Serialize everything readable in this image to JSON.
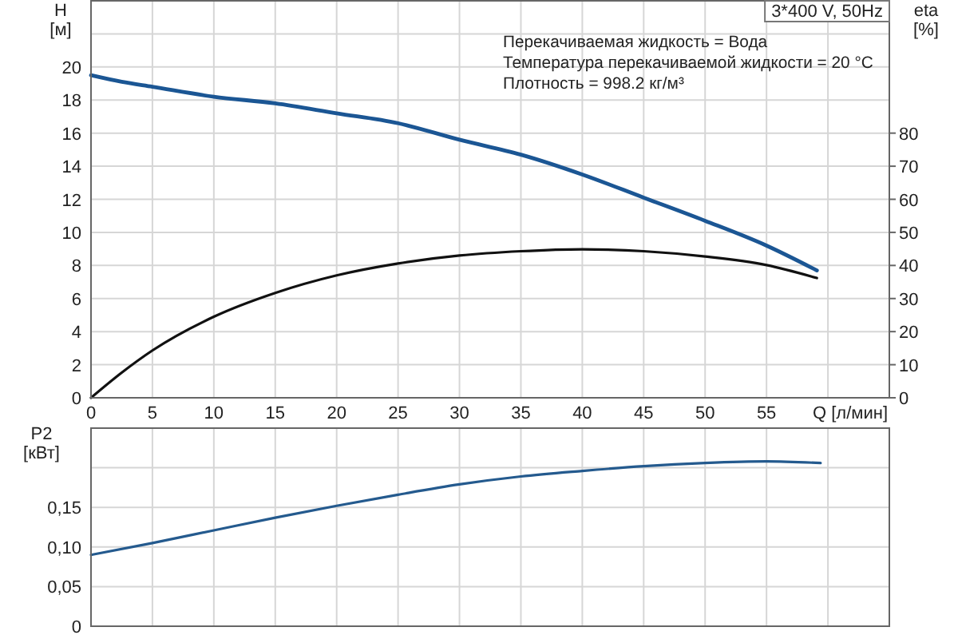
{
  "chart_data": [
    {
      "type": "line",
      "title": "3*400 V, 50Hz",
      "annotations": [
        "Перекачиваемая жидкость = Вода",
        "Температура перекачиваемой жидкости = 20 °C",
        "Плотность = 998.2 кг/м³"
      ],
      "xlabel": "Q [л/мин]",
      "ylabel": "H [м]",
      "y2label": "eta [%]",
      "xlim": [
        0,
        65
      ],
      "xticks": [
        0,
        5,
        10,
        15,
        20,
        25,
        30,
        35,
        40,
        45,
        50,
        55,
        {
          "value": 60,
          "label": null
        }
      ],
      "ylim": [
        0,
        24
      ],
      "yticks": [
        0,
        2,
        4,
        6,
        8,
        10,
        12,
        14,
        16,
        18,
        20,
        {
          "value": 22,
          "label": null
        }
      ],
      "y2lim": [
        0,
        120
      ],
      "y2ticks": [
        0,
        10,
        20,
        30,
        40,
        50,
        60,
        70,
        80
      ],
      "grid": true,
      "x": [
        0,
        2.5,
        5,
        10,
        15,
        20,
        25,
        30,
        35,
        40,
        45,
        50,
        55,
        59.1
      ],
      "series": [
        {
          "color": "#1b5694",
          "values": [
            19.5,
            19.1,
            18.8,
            18.2,
            17.8,
            17.2,
            16.6,
            15.6,
            14.7,
            13.5,
            12.1,
            10.7,
            9.2,
            7.7
          ]
        },
        {
          "color": "#111111",
          "axis": "y2",
          "values": [
            0,
            7.6,
            14.3,
            24.5,
            31.7,
            37,
            40.6,
            43,
            44.3,
            44.9,
            44.3,
            42.7,
            40.1,
            36.2
          ]
        }
      ]
    },
    {
      "type": "line",
      "ylabel": "P2 [кВт]",
      "xlim": [
        0,
        65
      ],
      "xticks": [
        0,
        5,
        10,
        15,
        20,
        25,
        30,
        35,
        40,
        45,
        50,
        55,
        60
      ],
      "ylim": [
        0,
        0.25
      ],
      "yticks": [
        0,
        {
          "value": 0.05,
          "label": "0,05"
        },
        {
          "value": 0.1,
          "label": "0,10"
        },
        {
          "value": 0.15,
          "label": "0,15"
        },
        {
          "value": 0.2,
          "label": null
        }
      ],
      "tick_labels": "y",
      "grid": true,
      "x": [
        0,
        5,
        10,
        15,
        20,
        25,
        30,
        35,
        40,
        45,
        50,
        55,
        59.4
      ],
      "series": [
        {
          "color": "#245a8e",
          "values": [
            0.09,
            0.105,
            0.121,
            0.137,
            0.152,
            0.166,
            0.179,
            0.189,
            0.196,
            0.202,
            0.206,
            0.208,
            0.206
          ]
        }
      ]
    }
  ]
}
